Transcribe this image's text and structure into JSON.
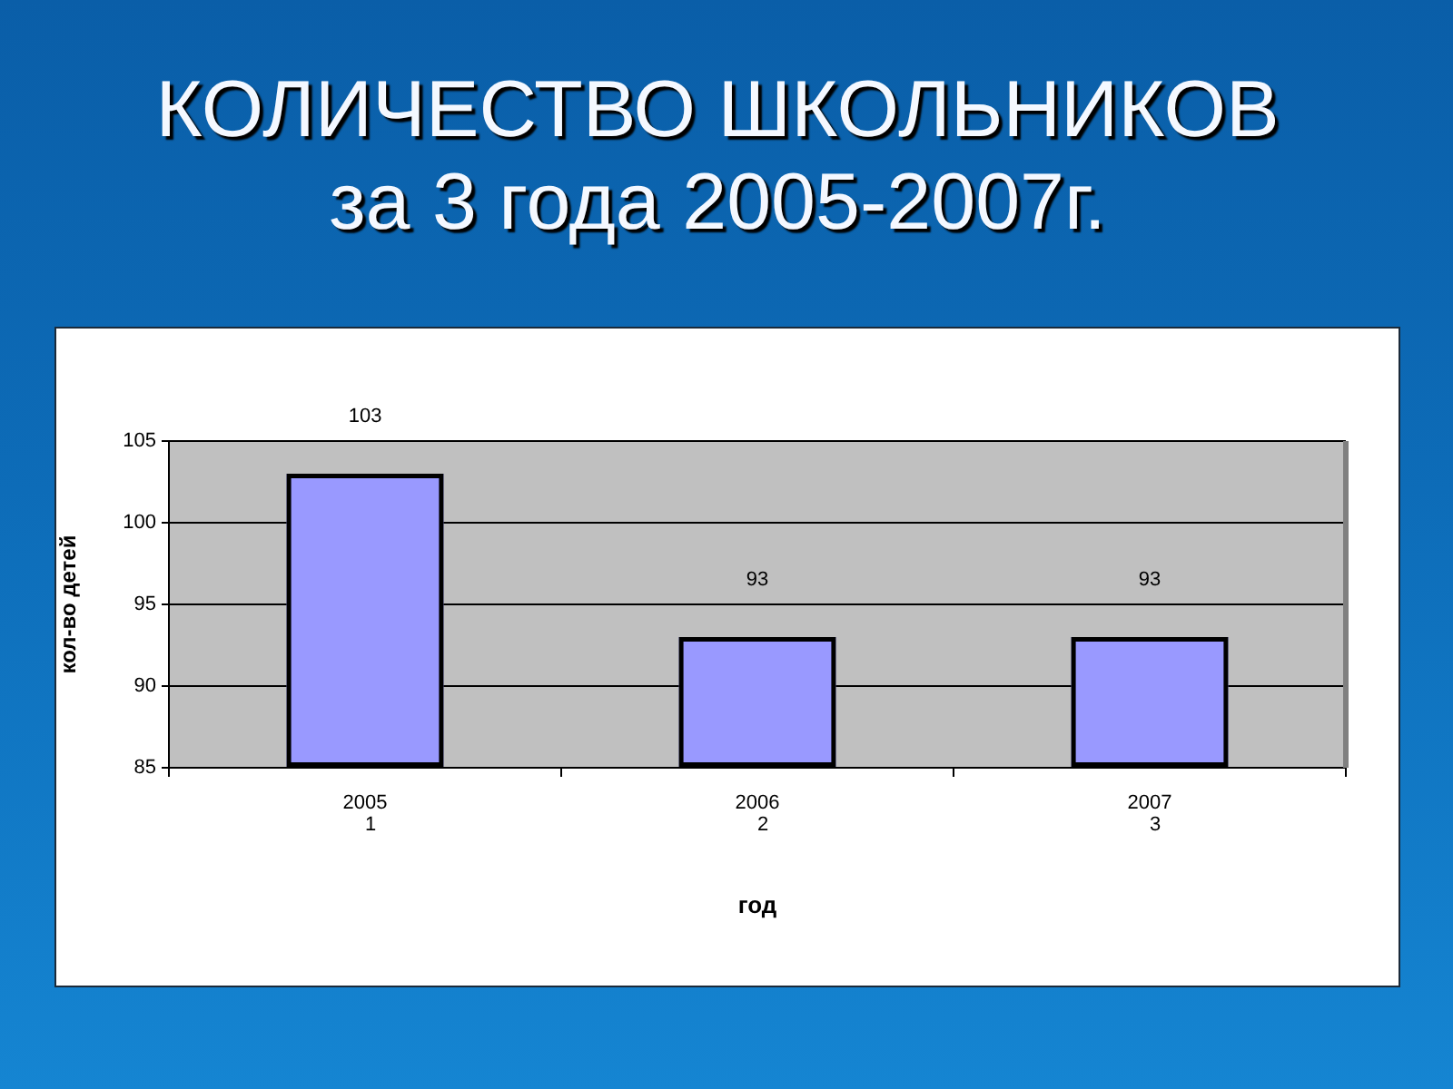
{
  "chart_data": {
    "type": "bar",
    "title": "КОЛИЧЕСТВО ШКОЛЬНИКОВ",
    "subtitle": "за 3 года 2005-2007г.",
    "xlabel": "год",
    "ylabel": "кол-во детей",
    "categories": [
      "2005",
      "2006",
      "2007"
    ],
    "values": [
      103,
      93,
      93
    ],
    "color": "#9999ff",
    "ylim": [
      85,
      105
    ],
    "yticks": [
      85,
      90,
      95,
      100,
      105
    ],
    "grid": "y",
    "legend": false,
    "data_labels": true,
    "annotations": [
      "1",
      "2",
      "3"
    ]
  }
}
